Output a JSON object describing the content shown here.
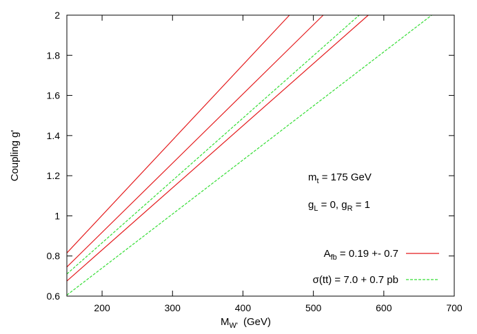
{
  "chart_data": {
    "type": "line",
    "xlabel": {
      "main": "M",
      "sub": "W'",
      "unit": "(GeV)"
    },
    "ylabel": "Coupling g'",
    "xlim": [
      150,
      700
    ],
    "ylim": [
      0.6,
      2.0
    ],
    "xticks": [
      200,
      300,
      400,
      500,
      600,
      700
    ],
    "yticks": [
      0.6,
      0.8,
      1.0,
      1.2,
      1.4,
      1.6,
      1.8,
      2.0
    ],
    "xtick_labels": [
      "200",
      "300",
      "400",
      "500",
      "600",
      "700"
    ],
    "ytick_labels": [
      "0.6",
      "0.8",
      "1",
      "1.2",
      "1.4",
      "1.6",
      "1.8",
      "2"
    ],
    "grid": false,
    "legend_position": "bottom-right",
    "annotations": {
      "mass": {
        "prefix": "m",
        "sub": "t",
        "rest": " = 175 GeV"
      },
      "couplings": {
        "p1": "g",
        "s1": "L",
        "p2": " = 0, g",
        "s2": "R",
        "p3": " = 1"
      }
    },
    "legend": [
      {
        "main": "A",
        "sub": "fb",
        "rest": " = 0.19 +- 0.7",
        "color": "#e41a1c",
        "dash": "solid"
      },
      {
        "main": "σ(tt) = 7.0 + 0.7 pb",
        "color": "#33dd33",
        "dash": "dashed"
      }
    ],
    "series": [
      {
        "group": 0,
        "color": "#e41a1c",
        "dash": "solid",
        "x": [
          150,
          466
        ],
        "y": [
          0.815,
          2.0
        ]
      },
      {
        "group": 0,
        "color": "#e41a1c",
        "dash": "solid",
        "x": [
          150,
          514
        ],
        "y": [
          0.745,
          2.0
        ]
      },
      {
        "group": 0,
        "color": "#e41a1c",
        "dash": "solid",
        "x": [
          150,
          578
        ],
        "y": [
          0.675,
          2.0
        ]
      },
      {
        "group": 1,
        "color": "#33dd33",
        "dash": "dashed",
        "x": [
          150,
          565
        ],
        "y": [
          0.71,
          2.0
        ]
      },
      {
        "group": 1,
        "color": "#33dd33",
        "dash": "dashed",
        "x": [
          150,
          668
        ],
        "y": [
          0.605,
          2.0
        ]
      }
    ]
  }
}
